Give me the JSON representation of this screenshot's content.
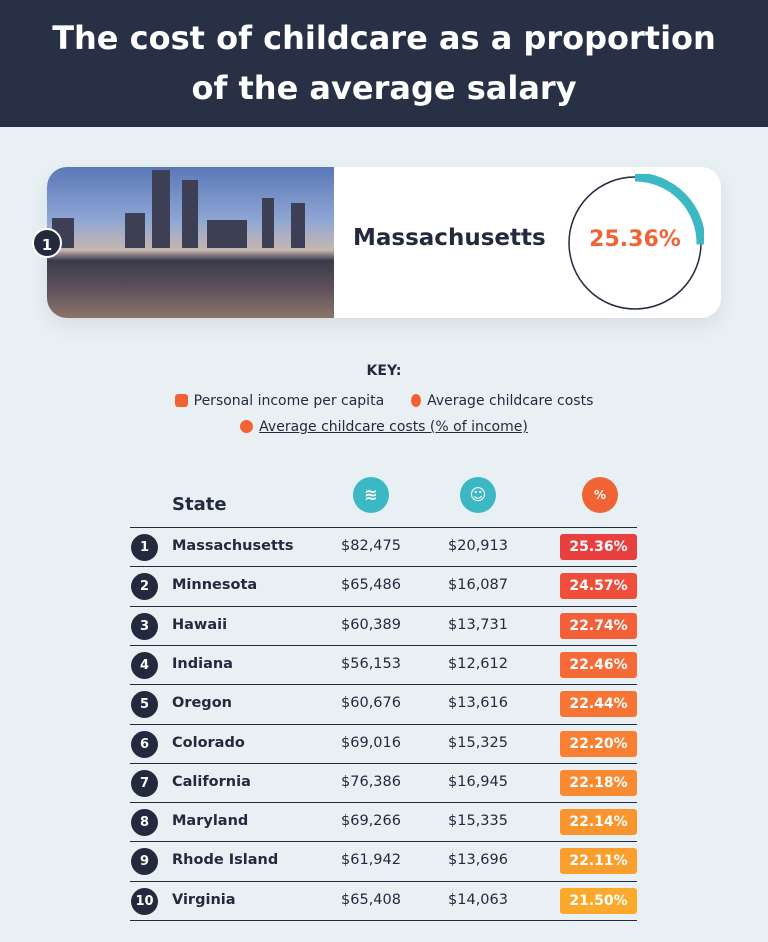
{
  "title": {
    "line1": "The cost of childcare as a proportion",
    "line2": "of the average salary"
  },
  "highlight": {
    "rank": "1",
    "state": "Massachusetts",
    "percent": "25.36%",
    "percent_value": 25.36,
    "ring_color": "#3bb8c3"
  },
  "key": {
    "heading": "KEY:",
    "items": [
      {
        "icon": "coins-icon",
        "label": "Personal income per capita"
      },
      {
        "icon": "baby-icon",
        "label": "Average childcare costs"
      },
      {
        "icon": "percent-badge-icon",
        "label": "Average childcare costs (% of income)"
      }
    ]
  },
  "chart_data": {
    "type": "table",
    "columns": [
      "State",
      "Personal income per capita",
      "Average childcare costs",
      "Average childcare costs (% of income)"
    ],
    "header": {
      "state": "State"
    },
    "rows": [
      {
        "rank": "1",
        "state": "Massachusetts",
        "income": "$82,475",
        "childcare": "$20,913",
        "percent": "25.36%",
        "color": "#e8403f"
      },
      {
        "rank": "2",
        "state": "Minnesota",
        "income": "$65,486",
        "childcare": "$16,087",
        "percent": "24.57%",
        "color": "#ee4e3a"
      },
      {
        "rank": "3",
        "state": "Hawaii",
        "income": "$60,389",
        "childcare": "$13,731",
        "percent": "22.74%",
        "color": "#f35f38"
      },
      {
        "rank": "4",
        "state": "Indiana",
        "income": "$56,153",
        "childcare": "$12,612",
        "percent": "22.46%",
        "color": "#f56a36"
      },
      {
        "rank": "5",
        "state": "Oregon",
        "income": "$60,676",
        "childcare": "$13,616",
        "percent": "22.44%",
        "color": "#f67434"
      },
      {
        "rank": "6",
        "state": "Colorado",
        "income": "$69,016",
        "childcare": "$15,325",
        "percent": "22.20%",
        "color": "#f78033"
      },
      {
        "rank": "7",
        "state": "California",
        "income": "$76,386",
        "childcare": "$16,945",
        "percent": "22.18%",
        "color": "#f88b31"
      },
      {
        "rank": "8",
        "state": "Maryland",
        "income": "$69,266",
        "childcare": "$15,335",
        "percent": "22.14%",
        "color": "#f9952f"
      },
      {
        "rank": "9",
        "state": "Rhode Island",
        "income": "$61,942",
        "childcare": "$13,696",
        "percent": "22.11%",
        "color": "#fa9e2d"
      },
      {
        "rank": "10",
        "state": "Virginia",
        "income": "$65,408",
        "childcare": "$14,063",
        "percent": "21.50%",
        "color": "#fba92a"
      }
    ]
  },
  "colors": {
    "header_bg": "#283046",
    "page_bg": "#e9f0f4",
    "teal": "#3bb8c3",
    "orange": "#f16334"
  }
}
